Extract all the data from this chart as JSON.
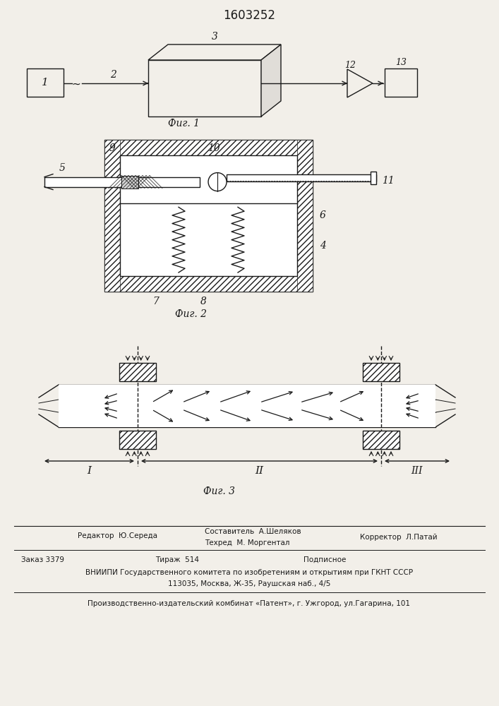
{
  "title": "1603252",
  "fig1_label": "Фиг. 1",
  "fig2_label": "Фиг. 2",
  "fig3_label": "Фиг. 3",
  "bg_color": "#f2efe9",
  "line_color": "#1a1a1a",
  "footer_line1a": "Составитель  А.Шеляков",
  "footer_line1b": "Редактор  Ю.Середа",
  "footer_line1c": "Техред  М. Моргентал",
  "footer_line1d": "Корректор  Л.Патай",
  "footer_line2": "Заказ 3379          Тираж  514          Подписное",
  "footer_line3": "ВНИИПИ Государственного комитета по изобретениям и открытиям при ГКНТ СССР",
  "footer_line4": "113035, Москва, Ж-35, Раушская наб., 4/5",
  "footer_line5": "Производственно-издательский комбинат «Патент», г. Ужгород, ул.Гагарина, 101"
}
